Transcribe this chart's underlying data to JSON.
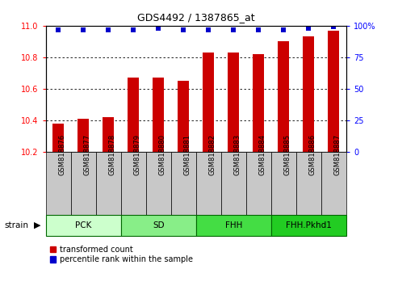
{
  "title": "GDS4492 / 1387865_at",
  "samples": [
    "GSM818876",
    "GSM818877",
    "GSM818878",
    "GSM818879",
    "GSM818880",
    "GSM818881",
    "GSM818882",
    "GSM818883",
    "GSM818884",
    "GSM818885",
    "GSM818886",
    "GSM818887"
  ],
  "bar_values": [
    10.38,
    10.41,
    10.42,
    10.67,
    10.67,
    10.65,
    10.83,
    10.83,
    10.82,
    10.9,
    10.93,
    10.97
  ],
  "percentile_values": [
    97,
    97,
    97,
    97,
    98,
    97,
    97,
    97,
    97,
    97,
    98,
    99
  ],
  "bar_color": "#cc0000",
  "percentile_color": "#0000cc",
  "ylim_left": [
    10.2,
    11.0
  ],
  "ylim_right": [
    0,
    100
  ],
  "yticks_left": [
    10.2,
    10.4,
    10.6,
    10.8,
    11.0
  ],
  "yticks_right_ticks": [
    0,
    25,
    50,
    75,
    100
  ],
  "yticks_right_labels": [
    "0",
    "25",
    "50",
    "75",
    "100%"
  ],
  "groups": [
    {
      "label": "PCK",
      "start": 0,
      "end": 3,
      "color": "#ccffcc"
    },
    {
      "label": "SD",
      "start": 3,
      "end": 6,
      "color": "#88ee88"
    },
    {
      "label": "FHH",
      "start": 6,
      "end": 9,
      "color": "#44dd44"
    },
    {
      "label": "FHH.Pkhd1",
      "start": 9,
      "end": 12,
      "color": "#22cc22"
    }
  ],
  "legend_items": [
    {
      "label": "transformed count",
      "color": "#cc0000"
    },
    {
      "label": "percentile rank within the sample",
      "color": "#0000cc"
    }
  ],
  "tick_bg_color": "#c8c8c8",
  "group_border_color": "#006600"
}
